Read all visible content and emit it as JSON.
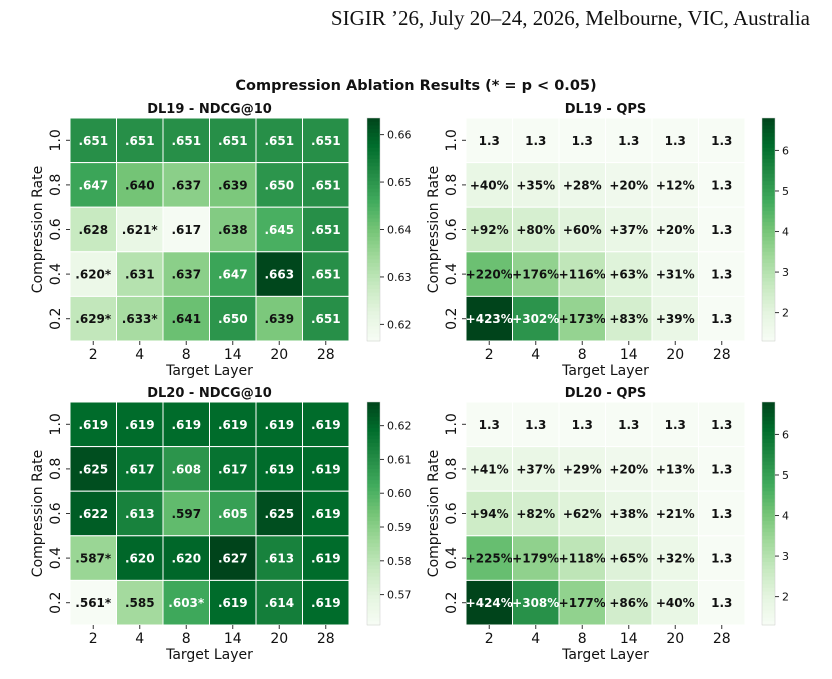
{
  "header": {
    "running_header": "SIGIR ’26, July 20–24, 2026, Melbourne, VIC, Australia"
  },
  "figure": {
    "suptitle": "Compression Ablation Results (* = p < 0.05)"
  },
  "colors": {
    "cmap_low": "#f7fcf5",
    "cmap_mid": "#74c476",
    "cmap_high": "#00441b"
  },
  "chart_data": [
    {
      "type": "heatmap",
      "title": "DL19 - NDCG@10",
      "xlabel": "Target Layer",
      "ylabel": "Compression Rate",
      "x_ticks": [
        "2",
        "4",
        "8",
        "14",
        "20",
        "28"
      ],
      "y_ticks": [
        "1.0",
        "0.8",
        "0.6",
        "0.4",
        "0.2"
      ],
      "values": [
        [
          0.651,
          0.651,
          0.651,
          0.651,
          0.651,
          0.651
        ],
        [
          0.647,
          0.64,
          0.637,
          0.639,
          0.65,
          0.651
        ],
        [
          0.628,
          0.621,
          0.617,
          0.638,
          0.645,
          0.651
        ],
        [
          0.62,
          0.631,
          0.637,
          0.647,
          0.663,
          0.651
        ],
        [
          0.629,
          0.633,
          0.641,
          0.65,
          0.639,
          0.651
        ]
      ],
      "annotations": [
        [
          ".651",
          ".651",
          ".651",
          ".651",
          ".651",
          ".651"
        ],
        [
          ".647",
          ".640",
          ".637",
          ".639",
          ".650",
          ".651"
        ],
        [
          ".628",
          ".621*",
          ".617",
          ".638",
          ".645",
          ".651"
        ],
        [
          ".620*",
          ".631",
          ".637",
          ".647",
          ".663",
          ".651"
        ],
        [
          ".629*",
          ".633*",
          ".641",
          ".650",
          ".639",
          ".651"
        ]
      ],
      "colorbar_range": [
        0.6165,
        0.6635
      ],
      "colorbar_ticks": [
        {
          "value": 0.62,
          "label": "0.62"
        },
        {
          "value": 0.63,
          "label": "0.63"
        },
        {
          "value": 0.64,
          "label": "0.64"
        },
        {
          "value": 0.65,
          "label": "0.65"
        },
        {
          "value": 0.66,
          "label": "0.66"
        }
      ],
      "cmap": "Greens"
    },
    {
      "type": "heatmap",
      "title": "DL19 - QPS",
      "xlabel": "Target Layer",
      "ylabel": "Compression Rate",
      "x_ticks": [
        "2",
        "4",
        "8",
        "14",
        "20",
        "28"
      ],
      "y_ticks": [
        "1.0",
        "0.8",
        "0.6",
        "0.4",
        "0.2"
      ],
      "values": [
        [
          1.3,
          1.3,
          1.3,
          1.3,
          1.3,
          1.3
        ],
        [
          1.82,
          1.755,
          1.664,
          1.56,
          1.456,
          1.3
        ],
        [
          2.496,
          2.34,
          2.08,
          1.781,
          1.56,
          1.3
        ],
        [
          4.16,
          3.588,
          2.808,
          2.119,
          1.703,
          1.3
        ],
        [
          6.799,
          5.226,
          3.549,
          2.379,
          1.807,
          1.3
        ]
      ],
      "annotations": [
        [
          "1.3",
          "1.3",
          "1.3",
          "1.3",
          "1.3",
          "1.3"
        ],
        [
          "+40%",
          "+35%",
          "+28%",
          "+20%",
          "+12%",
          "1.3"
        ],
        [
          "+92%",
          "+80%",
          "+60%",
          "+37%",
          "+20%",
          "1.3"
        ],
        [
          "+220%",
          "+176%",
          "+116%",
          "+63%",
          "+31%",
          "1.3"
        ],
        [
          "+423%",
          "+302%",
          "+173%",
          "+83%",
          "+39%",
          "1.3"
        ]
      ],
      "colorbar_range": [
        1.3,
        6.8
      ],
      "colorbar_ticks": [
        {
          "value": 2,
          "label": "2"
        },
        {
          "value": 3,
          "label": "3"
        },
        {
          "value": 4,
          "label": "4"
        },
        {
          "value": 5,
          "label": "5"
        },
        {
          "value": 6,
          "label": "6"
        }
      ],
      "cmap": "Greens"
    },
    {
      "type": "heatmap",
      "title": "DL20 - NDCG@10",
      "xlabel": "Target Layer",
      "ylabel": "Compression Rate",
      "x_ticks": [
        "2",
        "4",
        "8",
        "14",
        "20",
        "28"
      ],
      "y_ticks": [
        "1.0",
        "0.8",
        "0.6",
        "0.4",
        "0.2"
      ],
      "values": [
        [
          0.619,
          0.619,
          0.619,
          0.619,
          0.619,
          0.619
        ],
        [
          0.625,
          0.617,
          0.608,
          0.617,
          0.619,
          0.619
        ],
        [
          0.622,
          0.613,
          0.597,
          0.605,
          0.625,
          0.619
        ],
        [
          0.587,
          0.62,
          0.62,
          0.627,
          0.613,
          0.619
        ],
        [
          0.561,
          0.585,
          0.603,
          0.619,
          0.614,
          0.619
        ]
      ],
      "annotations": [
        [
          ".619",
          ".619",
          ".619",
          ".619",
          ".619",
          ".619"
        ],
        [
          ".625",
          ".617",
          ".608",
          ".617",
          ".619",
          ".619"
        ],
        [
          ".622",
          ".613",
          ".597",
          ".605",
          ".625",
          ".619"
        ],
        [
          ".587*",
          ".620",
          ".620",
          ".627",
          ".613",
          ".619"
        ],
        [
          ".561*",
          ".585",
          ".603*",
          ".619",
          ".614",
          ".619"
        ]
      ],
      "colorbar_range": [
        0.561,
        0.627
      ],
      "colorbar_ticks": [
        {
          "value": 0.57,
          "label": "0.57"
        },
        {
          "value": 0.58,
          "label": "0.58"
        },
        {
          "value": 0.59,
          "label": "0.59"
        },
        {
          "value": 0.6,
          "label": "0.60"
        },
        {
          "value": 0.61,
          "label": "0.61"
        },
        {
          "value": 0.62,
          "label": "0.62"
        }
      ],
      "cmap": "Greens"
    },
    {
      "type": "heatmap",
      "title": "DL20 - QPS",
      "xlabel": "Target Layer",
      "ylabel": "Compression Rate",
      "x_ticks": [
        "2",
        "4",
        "8",
        "14",
        "20",
        "28"
      ],
      "y_ticks": [
        "1.0",
        "0.8",
        "0.6",
        "0.4",
        "0.2"
      ],
      "values": [
        [
          1.3,
          1.3,
          1.3,
          1.3,
          1.3,
          1.3
        ],
        [
          1.833,
          1.781,
          1.677,
          1.56,
          1.469,
          1.3
        ],
        [
          2.522,
          2.366,
          2.106,
          1.794,
          1.573,
          1.3
        ],
        [
          4.225,
          3.627,
          2.834,
          2.145,
          1.716,
          1.3
        ],
        [
          6.812,
          5.304,
          3.601,
          2.418,
          1.82,
          1.3
        ]
      ],
      "annotations": [
        [
          "1.3",
          "1.3",
          "1.3",
          "1.3",
          "1.3",
          "1.3"
        ],
        [
          "+41%",
          "+37%",
          "+29%",
          "+20%",
          "+13%",
          "1.3"
        ],
        [
          "+94%",
          "+82%",
          "+62%",
          "+38%",
          "+21%",
          "1.3"
        ],
        [
          "+225%",
          "+179%",
          "+118%",
          "+65%",
          "+32%",
          "1.3"
        ],
        [
          "+424%",
          "+308%",
          "+177%",
          "+86%",
          "+40%",
          "1.3"
        ]
      ],
      "colorbar_range": [
        1.3,
        6.8
      ],
      "colorbar_ticks": [
        {
          "value": 2,
          "label": "2"
        },
        {
          "value": 3,
          "label": "3"
        },
        {
          "value": 4,
          "label": "4"
        },
        {
          "value": 5,
          "label": "5"
        },
        {
          "value": 6,
          "label": "6"
        }
      ],
      "cmap": "Greens"
    }
  ]
}
